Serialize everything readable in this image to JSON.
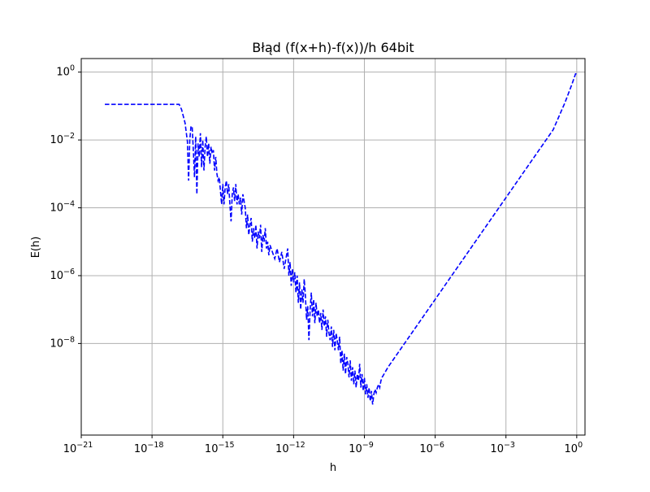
{
  "chart_data": {
    "type": "line",
    "title": "Błąd (f(x+h)-f(x))/h 64bit",
    "xlabel": "h",
    "ylabel": "E(h)",
    "xscale": "log",
    "yscale": "log",
    "xlim_exponent": [
      -21,
      0.35
    ],
    "ylim_exponent": [
      -10.7,
      0.4
    ],
    "grid": true,
    "line_style": "dashed",
    "color": "#0000ff",
    "x_ticks": [
      {
        "base": "10",
        "exp": "−21",
        "exponent": -21
      },
      {
        "base": "10",
        "exp": "−18",
        "exponent": -18
      },
      {
        "base": "10",
        "exp": "−15",
        "exponent": -15
      },
      {
        "base": "10",
        "exp": "−12",
        "exponent": -12
      },
      {
        "base": "10",
        "exp": "−9",
        "exponent": -9
      },
      {
        "base": "10",
        "exp": "−6",
        "exponent": -6
      },
      {
        "base": "10",
        "exp": "−3",
        "exponent": -3
      },
      {
        "base": "10",
        "exp": "0",
        "exponent": 0
      }
    ],
    "y_ticks": [
      {
        "base": "10",
        "exp": "0",
        "exponent": 0
      },
      {
        "base": "10",
        "exp": "−2",
        "exponent": -2
      },
      {
        "base": "10",
        "exp": "−4",
        "exponent": -4
      },
      {
        "base": "10",
        "exp": "−6",
        "exponent": -6
      },
      {
        "base": "10",
        "exp": "−8",
        "exponent": -8
      }
    ],
    "series": [
      {
        "name": "",
        "color": "#0000ff",
        "points_log10": [
          [
            -20.0,
            -0.95
          ],
          [
            -19.3,
            -0.95
          ],
          [
            -18.6,
            -0.95
          ],
          [
            -17.9,
            -0.95
          ],
          [
            -17.2,
            -0.95
          ],
          [
            -16.85,
            -0.95
          ],
          [
            -16.75,
            -1.1
          ],
          [
            -16.6,
            -1.5
          ],
          [
            -16.5,
            -2.05
          ],
          [
            -16.45,
            -3.2
          ],
          [
            -16.4,
            -2.0
          ],
          [
            -16.35,
            -1.6
          ],
          [
            -16.3,
            -1.6
          ],
          [
            -16.25,
            -2.3
          ],
          [
            -16.2,
            -3.1
          ],
          [
            -16.15,
            -1.9
          ],
          [
            -16.1,
            -3.6
          ],
          [
            -16.05,
            -2.1
          ],
          [
            -16.0,
            -2.5
          ],
          [
            -15.95,
            -1.8
          ],
          [
            -15.9,
            -2.8
          ],
          [
            -15.85,
            -2.0
          ],
          [
            -15.8,
            -2.9
          ],
          [
            -15.75,
            -2.2
          ],
          [
            -15.7,
            -1.9
          ],
          [
            -15.65,
            -2.5
          ],
          [
            -15.6,
            -2.1
          ],
          [
            -15.55,
            -2.7
          ],
          [
            -15.5,
            -2.2
          ],
          [
            -15.45,
            -2.4
          ],
          [
            -15.4,
            -2.3
          ],
          [
            -15.35,
            -2.9
          ],
          [
            -15.3,
            -2.5
          ],
          [
            -15.25,
            -3.0
          ],
          [
            -15.2,
            -3.2
          ],
          [
            -15.15,
            -3.1
          ],
          [
            -15.1,
            -3.5
          ],
          [
            -15.05,
            -3.9
          ],
          [
            -15.0,
            -3.3
          ],
          [
            -14.95,
            -3.9
          ],
          [
            -14.9,
            -3.4
          ],
          [
            -14.85,
            -3.2
          ],
          [
            -14.8,
            -3.6
          ],
          [
            -14.75,
            -3.3
          ],
          [
            -14.7,
            -3.9
          ],
          [
            -14.65,
            -4.4
          ],
          [
            -14.6,
            -3.6
          ],
          [
            -14.55,
            -3.4
          ],
          [
            -14.5,
            -3.8
          ],
          [
            -14.45,
            -3.3
          ],
          [
            -14.4,
            -3.9
          ],
          [
            -14.35,
            -3.6
          ],
          [
            -14.3,
            -3.9
          ],
          [
            -14.25,
            -3.7
          ],
          [
            -14.2,
            -4.2
          ],
          [
            -14.15,
            -3.6
          ],
          [
            -14.1,
            -3.8
          ],
          [
            -14.05,
            -4.0
          ],
          [
            -14.0,
            -4.6
          ],
          [
            -13.95,
            -4.2
          ],
          [
            -13.9,
            -4.8
          ],
          [
            -13.85,
            -4.5
          ],
          [
            -13.8,
            -4.3
          ],
          [
            -13.75,
            -5.0
          ],
          [
            -13.7,
            -4.6
          ],
          [
            -13.65,
            -4.9
          ],
          [
            -13.6,
            -4.5
          ],
          [
            -13.55,
            -5.2
          ],
          [
            -13.5,
            -4.7
          ],
          [
            -13.45,
            -4.9
          ],
          [
            -13.4,
            -4.5
          ],
          [
            -13.35,
            -5.3
          ],
          [
            -13.3,
            -4.8
          ],
          [
            -13.25,
            -5.0
          ],
          [
            -13.2,
            -4.6
          ],
          [
            -13.15,
            -5.2
          ],
          [
            -13.1,
            -5.0
          ],
          [
            -13.05,
            -5.4
          ],
          [
            -13.0,
            -5.1
          ],
          [
            -12.9,
            -5.3
          ],
          [
            -12.8,
            -5.5
          ],
          [
            -12.7,
            -5.2
          ],
          [
            -12.6,
            -5.6
          ],
          [
            -12.5,
            -5.3
          ],
          [
            -12.4,
            -5.8
          ],
          [
            -12.3,
            -5.4
          ],
          [
            -12.25,
            -5.2
          ],
          [
            -12.2,
            -6.0
          ],
          [
            -12.15,
            -5.6
          ],
          [
            -12.1,
            -6.3
          ],
          [
            -12.05,
            -5.8
          ],
          [
            -12.0,
            -6.2
          ],
          [
            -11.95,
            -5.9
          ],
          [
            -11.9,
            -6.5
          ],
          [
            -11.85,
            -6.0
          ],
          [
            -11.8,
            -6.8
          ],
          [
            -11.75,
            -6.2
          ],
          [
            -11.7,
            -7.0
          ],
          [
            -11.65,
            -6.4
          ],
          [
            -11.6,
            -6.8
          ],
          [
            -11.55,
            -6.1
          ],
          [
            -11.5,
            -6.6
          ],
          [
            -11.45,
            -7.3
          ],
          [
            -11.4,
            -6.9
          ],
          [
            -11.35,
            -7.9
          ],
          [
            -11.3,
            -7.0
          ],
          [
            -11.25,
            -6.5
          ],
          [
            -11.2,
            -7.2
          ],
          [
            -11.15,
            -6.7
          ],
          [
            -11.1,
            -7.4
          ],
          [
            -11.05,
            -6.8
          ],
          [
            -11.0,
            -7.2
          ],
          [
            -10.95,
            -7.0
          ],
          [
            -10.9,
            -7.4
          ],
          [
            -10.85,
            -7.1
          ],
          [
            -10.8,
            -7.6
          ],
          [
            -10.75,
            -7.0
          ],
          [
            -10.7,
            -7.5
          ],
          [
            -10.65,
            -7.2
          ],
          [
            -10.6,
            -7.8
          ],
          [
            -10.55,
            -7.3
          ],
          [
            -10.5,
            -7.7
          ],
          [
            -10.45,
            -7.9
          ],
          [
            -10.4,
            -7.5
          ],
          [
            -10.35,
            -8.1
          ],
          [
            -10.3,
            -7.6
          ],
          [
            -10.25,
            -8.2
          ],
          [
            -10.2,
            -7.7
          ],
          [
            -10.15,
            -7.9
          ],
          [
            -10.1,
            -8.2
          ],
          [
            -10.05,
            -7.8
          ],
          [
            -10.0,
            -8.6
          ],
          [
            -9.95,
            -8.2
          ],
          [
            -9.9,
            -8.8
          ],
          [
            -9.85,
            -8.3
          ],
          [
            -9.8,
            -8.9
          ],
          [
            -9.75,
            -8.4
          ],
          [
            -9.7,
            -8.6
          ],
          [
            -9.65,
            -9.0
          ],
          [
            -9.6,
            -8.5
          ],
          [
            -9.55,
            -9.1
          ],
          [
            -9.5,
            -8.7
          ],
          [
            -9.45,
            -9.2
          ],
          [
            -9.4,
            -8.8
          ],
          [
            -9.35,
            -9.3
          ],
          [
            -9.3,
            -8.9
          ],
          [
            -9.25,
            -9.1
          ],
          [
            -9.2,
            -8.6
          ],
          [
            -9.15,
            -9.3
          ],
          [
            -9.1,
            -8.9
          ],
          [
            -9.05,
            -9.4
          ],
          [
            -9.0,
            -9.0
          ],
          [
            -8.95,
            -9.5
          ],
          [
            -8.9,
            -9.2
          ],
          [
            -8.85,
            -9.6
          ],
          [
            -8.8,
            -9.3
          ],
          [
            -8.75,
            -9.7
          ],
          [
            -8.7,
            -9.4
          ],
          [
            -8.65,
            -9.8
          ],
          [
            -8.6,
            -9.5
          ],
          [
            -8.55,
            -9.35
          ],
          [
            -8.5,
            -9.45
          ],
          [
            -8.45,
            -9.3
          ],
          [
            -8.4,
            -9.2
          ],
          [
            -8.35,
            -9.3
          ],
          [
            -8.3,
            -9.1
          ],
          [
            -8.25,
            -9.0
          ],
          [
            -8.0,
            -8.7
          ],
          [
            -7.0,
            -7.7
          ],
          [
            -6.0,
            -6.7
          ],
          [
            -5.0,
            -5.7
          ],
          [
            -4.0,
            -4.7
          ],
          [
            -3.0,
            -3.7
          ],
          [
            -2.0,
            -2.7
          ],
          [
            -1.0,
            -1.7
          ],
          [
            -0.5,
            -0.9
          ],
          [
            -0.2,
            -0.35
          ],
          [
            -0.05,
            -0.05
          ],
          [
            0.0,
            -0.05
          ]
        ]
      }
    ]
  }
}
